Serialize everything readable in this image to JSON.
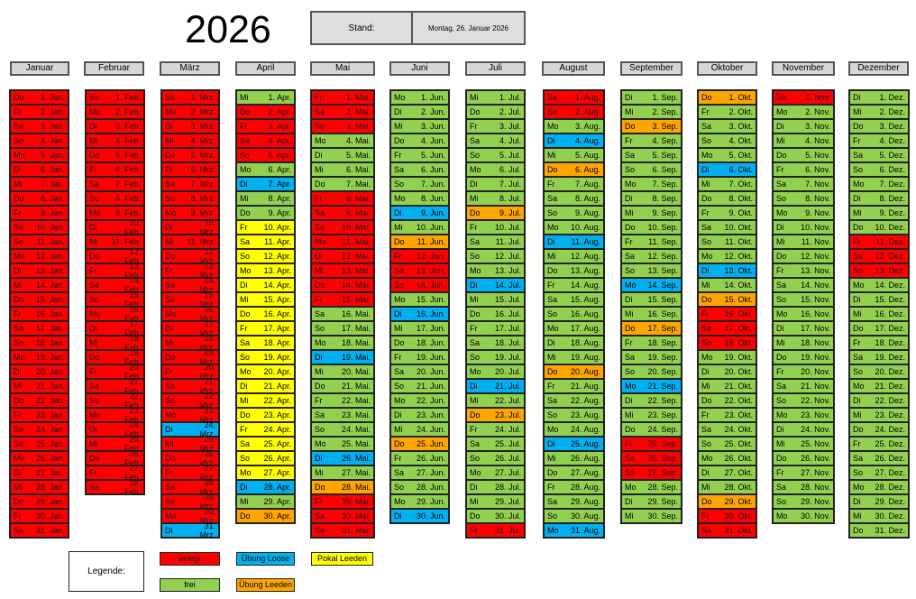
{
  "header": {
    "year": "2026",
    "stand_label": "Stand:",
    "stand_date": "Montag, 26. Januar 2026"
  },
  "colors": {
    "belegt": "#ff0000",
    "frei": "#92d050",
    "uebung_loose": "#00b0f0",
    "uebung_leeden": "#ffa500",
    "pokal_leeden": "#ffff00"
  },
  "months": [
    {
      "name": "Januar",
      "abbr": "Jan.",
      "days": 31,
      "start_weekday": 3,
      "default": "belegt",
      "overrides": {}
    },
    {
      "name": "Februar",
      "abbr": "Feb.",
      "days": 28,
      "start_weekday": 6,
      "default": "belegt",
      "overrides": {}
    },
    {
      "name": "März",
      "abbr": "Mrz.",
      "days": 31,
      "start_weekday": 6,
      "default": "belegt",
      "overrides": {
        "24": "uebung_loose",
        "31": "uebung_loose"
      }
    },
    {
      "name": "April",
      "abbr": "Apr.",
      "days": 30,
      "start_weekday": 2,
      "default": "pokal_leeden",
      "overrides": {
        "1": "frei",
        "2": "belegt",
        "3": "belegt",
        "4": "belegt",
        "5": "belegt",
        "6": "frei",
        "7": "uebung_loose",
        "8": "frei",
        "9": "frei",
        "28": "uebung_loose",
        "29": "frei",
        "30": "uebung_leeden"
      }
    },
    {
      "name": "Mai",
      "abbr": "Mai.",
      "days": 31,
      "start_weekday": 4,
      "default": "frei",
      "overrides": {
        "1": "belegt",
        "2": "belegt",
        "3": "belegt",
        "8": "belegt",
        "9": "belegt",
        "10": "belegt",
        "11": "belegt",
        "12": "belegt",
        "13": "belegt",
        "14": "belegt",
        "15": "belegt",
        "19": "uebung_loose",
        "26": "uebung_loose",
        "28": "uebung_leeden",
        "29": "belegt",
        "30": "belegt",
        "31": "belegt"
      }
    },
    {
      "name": "Juni",
      "abbr": "Jun.",
      "days": 30,
      "start_weekday": 0,
      "default": "frei",
      "overrides": {
        "9": "uebung_loose",
        "11": "uebung_leeden",
        "12": "belegt",
        "13": "belegt",
        "14": "belegt",
        "16": "uebung_loose",
        "25": "uebung_leeden",
        "30": "uebung_loose"
      }
    },
    {
      "name": "Juli",
      "abbr": "Jul.",
      "days": 31,
      "start_weekday": 2,
      "default": "frei",
      "overrides": {
        "9": "uebung_leeden",
        "14": "uebung_loose",
        "21": "uebung_loose",
        "23": "uebung_leeden",
        "31": "belegt"
      }
    },
    {
      "name": "August",
      "abbr": "Aug.",
      "days": 31,
      "start_weekday": 5,
      "default": "frei",
      "overrides": {
        "1": "belegt",
        "2": "belegt",
        "4": "uebung_loose",
        "6": "uebung_leeden",
        "11": "uebung_loose",
        "20": "uebung_leeden",
        "25": "uebung_loose",
        "31": "uebung_loose"
      }
    },
    {
      "name": "September",
      "abbr": "Sep.",
      "days": 30,
      "start_weekday": 1,
      "default": "frei",
      "overrides": {
        "3": "uebung_leeden",
        "14": "uebung_loose",
        "17": "uebung_leeden",
        "21": "uebung_loose",
        "25": "belegt",
        "26": "belegt",
        "27": "belegt"
      }
    },
    {
      "name": "Oktober",
      "abbr": "Okt.",
      "days": 31,
      "start_weekday": 3,
      "default": "frei",
      "overrides": {
        "1": "uebung_leeden",
        "6": "uebung_loose",
        "13": "uebung_loose",
        "15": "uebung_leeden",
        "16": "belegt",
        "17": "belegt",
        "18": "belegt",
        "29": "uebung_leeden",
        "30": "belegt",
        "31": "belegt"
      }
    },
    {
      "name": "November",
      "abbr": "Nov.",
      "days": 30,
      "start_weekday": 6,
      "default": "frei",
      "overrides": {
        "1": "belegt"
      }
    },
    {
      "name": "Dezember",
      "abbr": "Dez.",
      "days": 31,
      "start_weekday": 1,
      "default": "frei",
      "overrides": {
        "11": "belegt",
        "12": "belegt",
        "13": "belegt"
      }
    }
  ],
  "weekday_abbr": [
    "Mo",
    "Di",
    "Mi",
    "Do",
    "Fr",
    "Sa",
    "So"
  ],
  "legend": {
    "title": "Legende:",
    "items": [
      {
        "key": "belegt",
        "label": "belegt"
      },
      {
        "key": "uebung_loose",
        "label": "Übung Loose"
      },
      {
        "key": "pokal_leeden",
        "label": "Pokal Leeden"
      },
      {
        "key": "frei",
        "label": "frei"
      },
      {
        "key": "uebung_leeden",
        "label": "Übung Leeden"
      }
    ]
  }
}
